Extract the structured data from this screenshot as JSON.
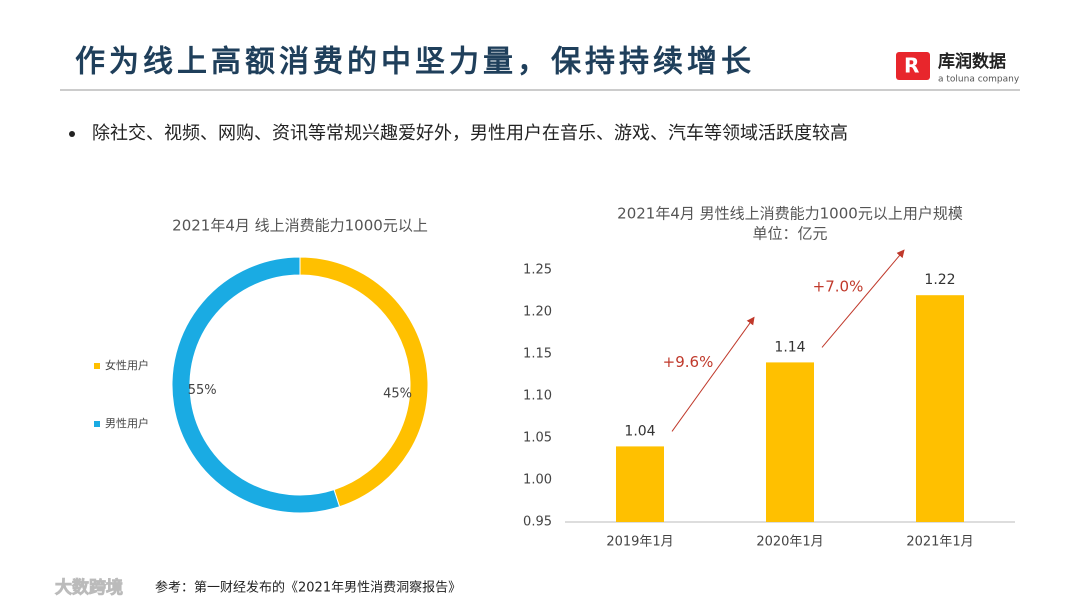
{
  "header": {
    "title": "作为线上高额消费的中坚力量，保持持续增长",
    "logo": "库润数据",
    "logo_sub": "a toluna company"
  },
  "bullet": "除社交、视频、网购、资讯等常规兴趣爱好外，男性用户在音乐、游戏、汽车等领域活跃度较高",
  "chart_data": [
    {
      "type": "pie",
      "title": "2021年4月 线上消费能力1000元以上",
      "categories": [
        "女性用户",
        "男性用户"
      ],
      "values": [
        45,
        55
      ],
      "value_labels": [
        "45%",
        "55%"
      ],
      "colors": [
        "#FFC000",
        "#1AABE3"
      ],
      "legend": "left"
    },
    {
      "type": "bar",
      "title": "2021年4月  男性线上消费能力1000元以上用户规模",
      "subtitle": "单位：亿元",
      "categories": [
        "2019年1月",
        "2020年1月",
        "2021年1月"
      ],
      "values": [
        1.04,
        1.14,
        1.22
      ],
      "color": "#FFC000",
      "ylim": [
        0.95,
        1.25
      ],
      "yticks": [
        0.95,
        {
          "value": 1,
          "label": "1.00"
        },
        1.05,
        {
          "value": 1.1,
          "label": "1.10"
        },
        1.15,
        {
          "value": 1.2,
          "label": "1.20"
        },
        1.25
      ],
      "annotations": [
        "+9.6%",
        "+7.0%"
      ],
      "annotation_color": "#C0392B"
    }
  ],
  "footnote": "参考：第一财经发布的《2021年男性消费洞察报告》",
  "watermark": "大数跨境"
}
